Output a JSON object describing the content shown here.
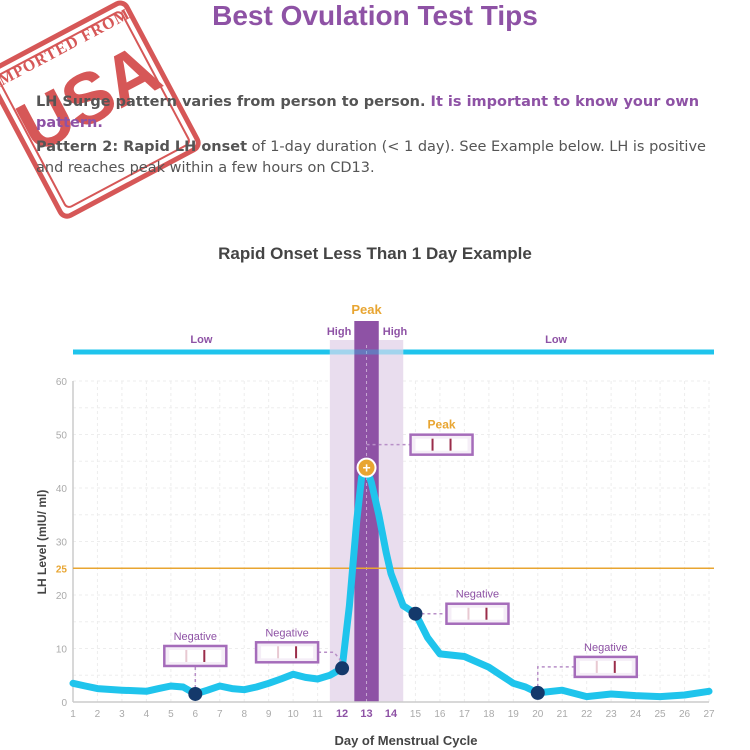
{
  "page": {
    "title": "Best Ovulation Test Tips",
    "intro_normal": "LH Surge pattern varies from person to person. ",
    "intro_highlight": "It is important to know your own pattern.",
    "pattern_bold": "Pattern 2: Rapid LH onset",
    "pattern_text": " of 1-day duration (< 1 day). See Example below. LH is positive and reaches peak within a few hours on CD13."
  },
  "stamp": {
    "top_text": "IMPORTED FROM",
    "main_text": "USA",
    "color": "#cf3a3a"
  },
  "colors": {
    "title": "#8e52a5",
    "line": "#1fc4ec",
    "marker": "#14396b",
    "threshold": "#e8a531",
    "peak_band": "#8e52a5",
    "high_band": "#e9ddee",
    "test_strip_border": "#a56cba"
  },
  "chart_data": {
    "type": "line",
    "title": "Rapid Onset Less Than 1 Day Example",
    "xlabel": "Day of Menstrual Cycle",
    "ylabel": "LH Level (mIU/ ml)",
    "xlim": [
      1,
      27
    ],
    "ylim": [
      0,
      60
    ],
    "x_ticks": [
      1,
      2,
      3,
      4,
      5,
      6,
      7,
      8,
      9,
      10,
      11,
      12,
      13,
      14,
      15,
      16,
      17,
      18,
      19,
      20,
      21,
      22,
      23,
      24,
      25,
      26,
      27
    ],
    "x_highlight_ticks": [
      12,
      13,
      14
    ],
    "y_ticks": [
      0,
      10,
      20,
      30,
      40,
      50,
      60
    ],
    "threshold": {
      "value": 25,
      "label": "25"
    },
    "series": [
      {
        "x": [
          1,
          1.5,
          2,
          3,
          4,
          4.5,
          5,
          5.5,
          6,
          6.5,
          7,
          7.5,
          8,
          8.5,
          9,
          9.5,
          10,
          10.5,
          11,
          11.5,
          12,
          12.3,
          12.6,
          12.8,
          13,
          13.2,
          13.5,
          13.8,
          14,
          14.5,
          15,
          15.5,
          16,
          17,
          18,
          18.5,
          19,
          19.5,
          20,
          21,
          22,
          23,
          24,
          25,
          26,
          27
        ],
        "y": [
          3.5,
          3,
          2.5,
          2.2,
          2,
          2.5,
          3,
          2.8,
          1.5,
          2.2,
          3,
          2.5,
          2.3,
          2.8,
          3.5,
          4.3,
          5.2,
          4.6,
          4.3,
          5,
          6.3,
          18,
          34,
          42,
          43.8,
          41,
          35,
          28,
          24,
          18,
          16.5,
          12,
          9,
          8.5,
          6.5,
          5,
          3.5,
          2.8,
          1.7,
          2.2,
          1,
          1.5,
          1.2,
          1,
          1.3,
          2
        ]
      }
    ],
    "markers": [
      {
        "x": 6,
        "y": 1.5,
        "label": "Negative",
        "result": "negative"
      },
      {
        "x": 12,
        "y": 6.3,
        "label": "Negative",
        "result": "negative"
      },
      {
        "x": 13,
        "y": 43.8,
        "label": "Peak",
        "result": "peak"
      },
      {
        "x": 15,
        "y": 16.5,
        "label": "Negative",
        "result": "negative"
      },
      {
        "x": 20,
        "y": 1.7,
        "label": "Negative",
        "result": "negative"
      }
    ],
    "bands": [
      {
        "label": "Low",
        "from": 1,
        "to": 11.5
      },
      {
        "label": "High",
        "from": 11.5,
        "to": 12.5
      },
      {
        "label": "Peak",
        "from": 12.5,
        "to": 13.5
      },
      {
        "label": "High",
        "from": 13.5,
        "to": 14.5
      },
      {
        "label": "Low",
        "from": 14.5,
        "to": 27
      }
    ]
  }
}
